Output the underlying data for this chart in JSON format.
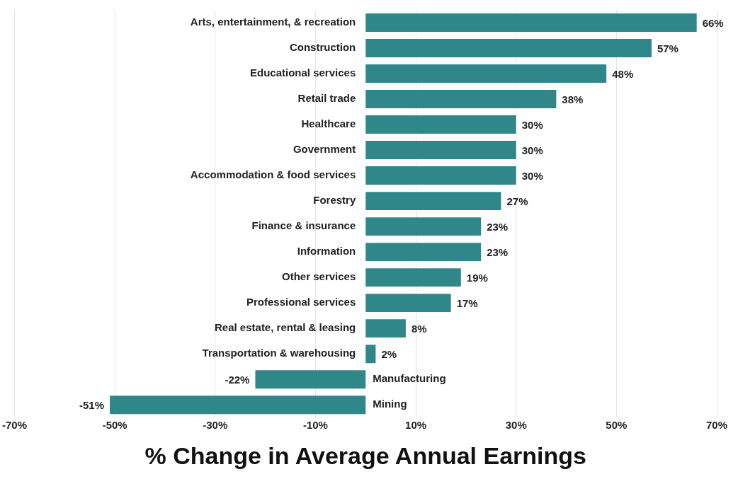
{
  "chart_data": {
    "type": "bar",
    "orientation": "horizontal",
    "xlabel": "% Change in Average Annual Earnings",
    "categories": [
      "Arts, entertainment, & recreation",
      "Construction",
      "Educational services",
      "Retail trade",
      "Healthcare",
      "Government",
      "Accommodation & food services",
      "Forestry",
      "Finance & insurance",
      "Information",
      "Other services",
      "Professional services",
      "Real estate, rental & leasing",
      "Transportation & warehousing",
      "Manufacturing",
      "Mining"
    ],
    "values": [
      66,
      57,
      48,
      38,
      30,
      30,
      30,
      27,
      23,
      23,
      19,
      17,
      8,
      2,
      -22,
      -51
    ],
    "value_labels": [
      "66%",
      "57%",
      "48%",
      "38%",
      "30%",
      "30%",
      "30%",
      "27%",
      "23%",
      "23%",
      "19%",
      "17%",
      "8%",
      "2%",
      "-22%",
      "-51%"
    ],
    "color": "#30878a",
    "xlim": [
      -70,
      70
    ],
    "xticks": [
      {
        "value": -70,
        "label": "-70%"
      },
      {
        "value": -50,
        "label": "-50%"
      },
      {
        "value": -30,
        "label": "-30%"
      },
      {
        "value": -10,
        "label": "-10%"
      },
      {
        "value": 10,
        "label": "10%"
      },
      {
        "value": 30,
        "label": "30%"
      },
      {
        "value": 50,
        "label": "50%"
      },
      {
        "value": 70,
        "label": "70%"
      }
    ],
    "grid": "x",
    "legend": false
  }
}
